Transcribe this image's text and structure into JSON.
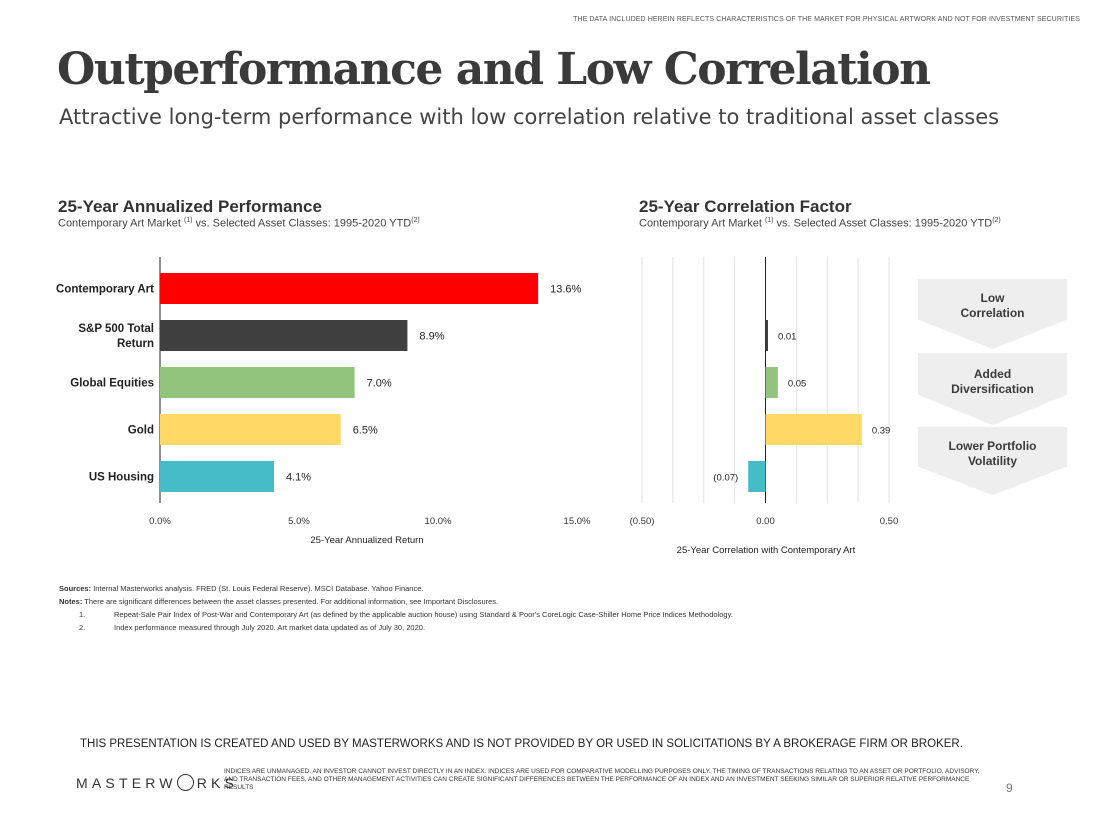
{
  "top_disclaimer": "THE DATA INCLUDED HEREIN REFLECTS CHARACTERISTICS OF THE MARKET FOR PHYSICAL ARTWORK AND NOT FOR INVESTMENT SECURITIES",
  "page_title": "Outperformance and Low Correlation",
  "page_subtitle": "Attractive long-term performance with low correlation relative to traditional asset classes",
  "colors": {
    "contemporary_art": "#ff0000",
    "sp500": "#404040",
    "global_equities": "#93c47d",
    "gold": "#ffd966",
    "us_housing": "#45bcc8"
  },
  "chart_data": [
    {
      "type": "bar",
      "orientation": "horizontal",
      "title": "25-Year Annualized Performance",
      "subtitle_main": "Contemporary Art Market ",
      "subtitle_sup1": "(1)",
      "subtitle_mid": " vs. Selected Asset Classes: 1995-2020 YTD",
      "subtitle_sup2": "(2)",
      "categories": [
        "Contemporary Art",
        "S&P 500 Total Return",
        "Global Equities",
        "Gold",
        "US Housing"
      ],
      "category_lines": [
        [
          "Contemporary Art"
        ],
        [
          "S&P 500 Total",
          "Return"
        ],
        [
          "Global Equities"
        ],
        [
          "Gold"
        ],
        [
          "US Housing"
        ]
      ],
      "values": [
        13.6,
        8.9,
        7.0,
        6.5,
        4.1
      ],
      "data_labels": [
        "13.6%",
        "8.9%",
        "7.0%",
        "6.5%",
        "4.1%"
      ],
      "xlim": [
        0,
        15
      ],
      "xticks": [
        0,
        5,
        10,
        15
      ],
      "xtick_labels": [
        "0.0%",
        "5.0%",
        "10.0%",
        "15.0%"
      ],
      "xlabel": "25-Year Annualized Return",
      "grid": false
    },
    {
      "type": "bar",
      "orientation": "horizontal",
      "title": "25-Year Correlation Factor",
      "subtitle_main": "Contemporary Art Market ",
      "subtitle_sup1": "(1)",
      "subtitle_mid": " vs. Selected Asset Classes: 1995-2020 YTD",
      "subtitle_sup2": "(2)",
      "categories": [
        "S&P 500 Total Return",
        "Global Equities",
        "Gold",
        "US Housing"
      ],
      "values": [
        0.01,
        0.05,
        0.39,
        -0.07
      ],
      "data_labels": [
        "0.01",
        "0.05",
        "0.39",
        "(0.07)"
      ],
      "xlim": [
        -0.5,
        0.5
      ],
      "xticks": [
        -0.5,
        0,
        0.5
      ],
      "xtick_labels": [
        "(0.50)",
        "0.00",
        "0.50"
      ],
      "xlabel": "25-Year Correlation with Contemporary Art",
      "grid": true
    }
  ],
  "callouts": [
    "Low\nCorrelation",
    "Added\nDiversification",
    "Lower Portfolio\nVolatility"
  ],
  "sources_label": "Sources:",
  "sources_text": " Internal Masterworks analysis. FRED (St. Louis Federal Reserve). MSCI Database. Yahoo Finance.",
  "notes_label": "Notes:",
  "notes_text": " There are significant differences between the asset classes presented. For additional information, see Important Disclosures.",
  "notes_items": [
    {
      "num": "1.",
      "text": "Repeat-Sale Pair Index of Post-War and Contemporary Art (as defined by the applicable auction house) using Standard & Poor's CoreLogic Case-Shiller Home Price Indices Methodology."
    },
    {
      "num": "2.",
      "text": "Index performance measured through July 2020. Art market data updated as of July 30, 2020."
    }
  ],
  "footer_statement": "THIS PRESENTATION  IS CREATED AND USED BY MASTERWORKS AND IS NOT PROVIDED BY OR USED IN SOLICITATIONS BY A BROKERAGE FIRM OR BROKER.",
  "logo_left": "MASTERW",
  "logo_right": "RKS",
  "footer_fine": "INDICES ARE UNMANAGED. AN INVESTOR CANNOT INVEST DIRECTLY IN AN INDEX. INDICES ARE USED FOR COMPARATIVE MODELLING PURPOSES ONLY. THE TIMING OF TRANSACTIONS RELATING TO AN ASSET OR PORTFOLIO, ADVISORY, AND TRANSACTION FEES, AND OTHER MANAGEMENT ACTIVITIES CAN CREATE SIGNIFICANT DIFFERENCES BETWEEN THE PERFORMANCE OF AN INDEX AND AN INVESTMENT SEEKING SIMILAR OR SUPERIOR RELATIVE PERFORMANCE RESULTS",
  "page_number": "9"
}
